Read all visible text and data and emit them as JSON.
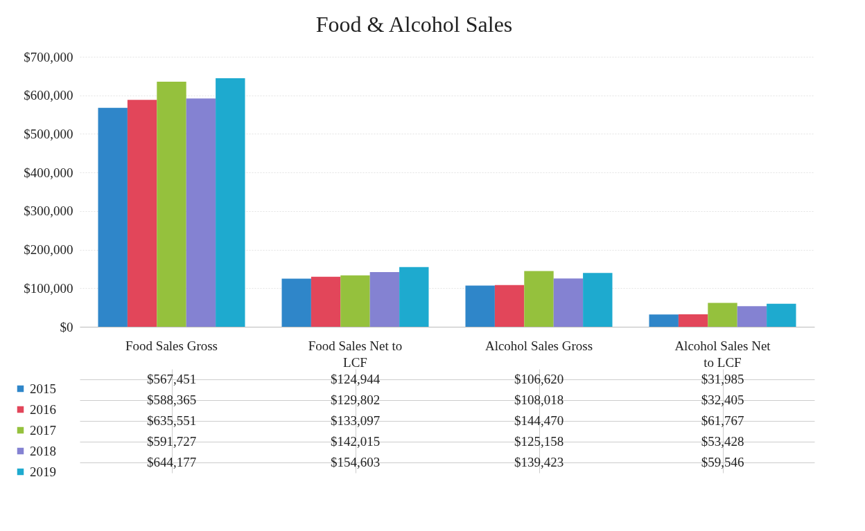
{
  "chart_data": {
    "type": "bar",
    "title": "Food & Alcohol Sales",
    "categories": [
      "Food Sales Gross",
      "Food Sales Net to LCF",
      "Alcohol Sales Gross",
      "Alcohol Sales Net to LCF"
    ],
    "series": [
      {
        "name": "2015",
        "color": "#2f86c9",
        "values": [
          567451,
          124944,
          106620,
          31985
        ],
        "value_labels": [
          "$567,451",
          "$124,944",
          "$106,620",
          "$31,985"
        ]
      },
      {
        "name": "2016",
        "color": "#e2465a",
        "values": [
          588365,
          129802,
          108018,
          32405
        ],
        "value_labels": [
          "$588,365",
          "$129,802",
          "$108,018",
          "$32,405"
        ]
      },
      {
        "name": "2017",
        "color": "#95c13d",
        "values": [
          635551,
          133097,
          144470,
          61767
        ],
        "value_labels": [
          "$635,551",
          "$133,097",
          "$144,470",
          "$61,767"
        ]
      },
      {
        "name": "2018",
        "color": "#8482d2",
        "values": [
          591727,
          142015,
          125158,
          53428
        ],
        "value_labels": [
          "$591,727",
          "$142,015",
          "$125,158",
          "$53,428"
        ]
      },
      {
        "name": "2019",
        "color": "#1eaacf",
        "values": [
          644177,
          154603,
          139423,
          59546
        ],
        "value_labels": [
          "$644,177",
          "$154,603",
          "$139,423",
          "$59,546"
        ]
      }
    ],
    "ylim": [
      0,
      700000
    ],
    "yticks": [
      {
        "value": 0,
        "label": "$0"
      },
      {
        "value": 100000,
        "label": "$100,000"
      },
      {
        "value": 200000,
        "label": "$200,000"
      },
      {
        "value": 300000,
        "label": "$300,000"
      },
      {
        "value": 400000,
        "label": "$400,000"
      },
      {
        "value": 500000,
        "label": "$500,000"
      },
      {
        "value": 600000,
        "label": "$600,000"
      },
      {
        "value": 700000,
        "label": "$700,000"
      }
    ],
    "grid": "y",
    "legend": "bottom left"
  }
}
